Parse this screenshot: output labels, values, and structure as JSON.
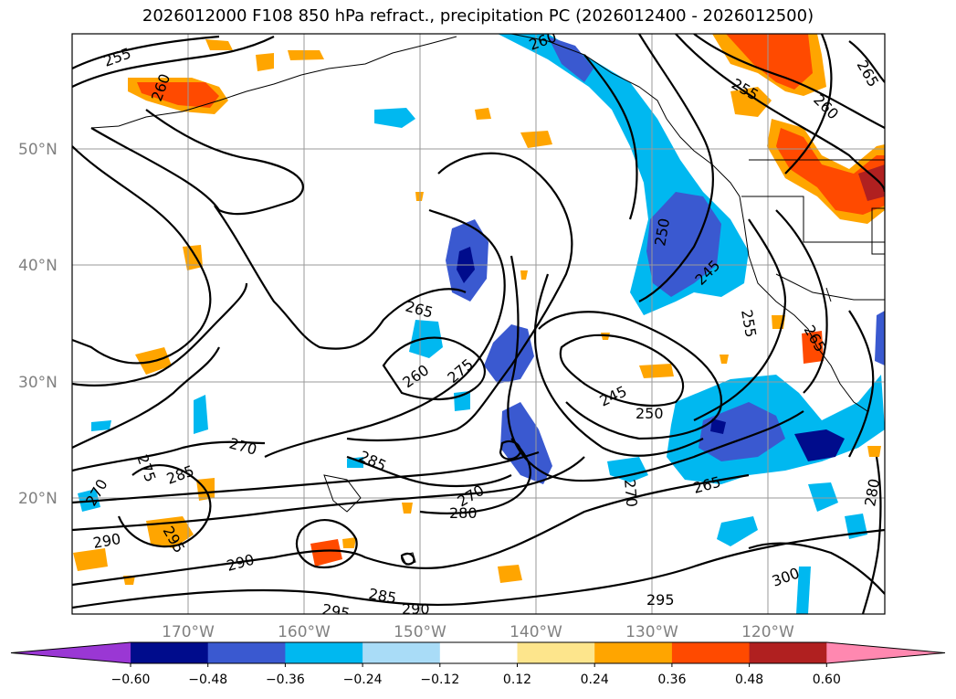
{
  "title": "2026012000 F108 850 hPa refract., precipitation PC (2026012400 - 2026012500)",
  "map": {
    "lat_labels": [
      "50°N",
      "40°N",
      "30°N",
      "20°N"
    ],
    "lon_labels": [
      "170°W",
      "160°W",
      "150°W",
      "140°W",
      "130°W",
      "120°W"
    ],
    "contour_labels": [
      "255",
      "260",
      "265",
      "255",
      "260",
      "260",
      "250",
      "245",
      "255",
      "265",
      "265",
      "260",
      "275",
      "245",
      "250",
      "270",
      "270",
      "275",
      "285",
      "285",
      "270",
      "280",
      "270",
      "265",
      "290",
      "295",
      "290",
      "285",
      "290",
      "295",
      "295",
      "300",
      "280"
    ]
  },
  "colorbar": {
    "labels": [
      "−0.60",
      "−0.48",
      "−0.36",
      "−0.24",
      "−0.12",
      "0.12",
      "0.24",
      "0.36",
      "0.48",
      "0.60"
    ],
    "colors": [
      "#9a37d4",
      "#000c8c",
      "#3a59d0",
      "#00b8f0",
      "#a9dcf7",
      "#ffffff",
      "#fde58c",
      "#ffa500",
      "#ff4a00",
      "#b02020",
      "#ff88b0"
    ]
  }
}
